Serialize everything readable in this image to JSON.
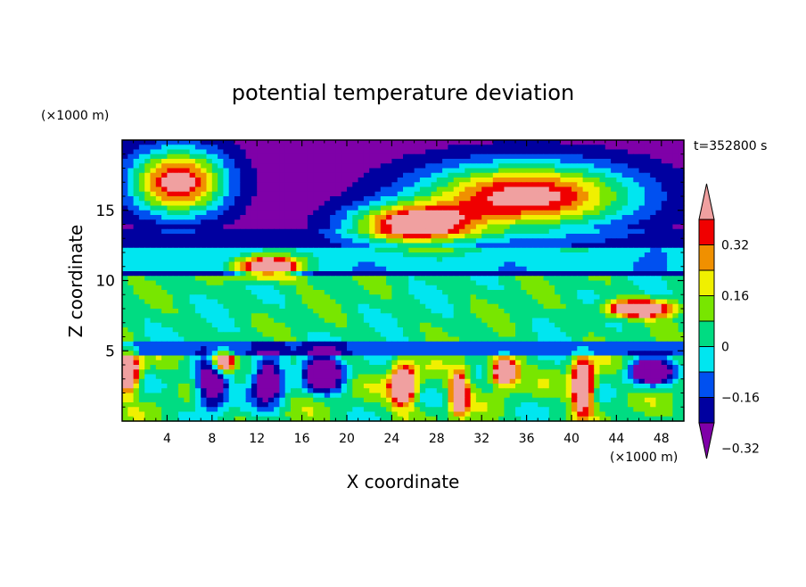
{
  "chart_data": {
    "type": "heatmap",
    "title": "potential temperature deviation",
    "time_label": "t=352800 s",
    "xlabel": "X coordinate",
    "ylabel": "Z coordinate",
    "x_unit": "(×1000 m)",
    "z_unit": "(×1000 m)",
    "xlim": [
      0,
      50
    ],
    "zlim": [
      0,
      20
    ],
    "x_ticks": [
      4,
      8,
      12,
      16,
      20,
      24,
      28,
      32,
      36,
      40,
      44,
      48
    ],
    "z_ticks": [
      5,
      10,
      15
    ],
    "colorbar": {
      "levels": [
        -0.4,
        -0.32,
        -0.24,
        -0.16,
        -0.08,
        0,
        0.08,
        0.16,
        0.24,
        0.32,
        0.4
      ],
      "labels": [
        "0.32",
        "0.16",
        "0",
        "−0.16",
        "−0.32"
      ],
      "label_values": [
        0.32,
        0.16,
        0,
        -0.16,
        -0.32
      ],
      "colors": [
        "#7f00a8",
        "#0000a0",
        "#0050f0",
        "#00e6f0",
        "#00dc82",
        "#78e600",
        "#f0f000",
        "#f09000",
        "#f00000",
        "#f0a0a0"
      ]
    },
    "features": [
      {
        "kind": "high",
        "x": 5,
        "z": 17,
        "rx": 4.5,
        "rz": 2.5
      },
      {
        "kind": "high",
        "x": 36,
        "z": 16,
        "rx": 10,
        "rz": 2.5
      },
      {
        "kind": "high",
        "x": 26,
        "z": 14,
        "rx": 6,
        "rz": 1.5
      },
      {
        "kind": "high",
        "x": 13,
        "z": 11,
        "rx": 3,
        "rz": 0.8
      },
      {
        "kind": "high",
        "x": 46,
        "z": 8,
        "rx": 3,
        "rz": 0.6
      },
      {
        "kind": "high",
        "x": 25,
        "z": 2.5,
        "rx": 1.2,
        "rz": 1.5
      },
      {
        "kind": "high",
        "x": 30,
        "z": 2.0,
        "rx": 0.8,
        "rz": 1.5
      },
      {
        "kind": "high",
        "x": 34,
        "z": 3.5,
        "rx": 1.2,
        "rz": 1.0
      },
      {
        "kind": "high",
        "x": 9,
        "z": 4.2,
        "rx": 1.0,
        "rz": 0.8
      },
      {
        "kind": "high",
        "x": 0.5,
        "z": 3.5,
        "rx": 1.0,
        "rz": 1.5
      },
      {
        "kind": "high",
        "x": 41,
        "z": 2.5,
        "rx": 1.0,
        "rz": 2.0
      },
      {
        "kind": "low",
        "x": 8,
        "z": 2.5,
        "rx": 1.5,
        "rz": 1.8
      },
      {
        "kind": "low",
        "x": 13,
        "z": 3.0,
        "rx": 1.5,
        "rz": 1.8
      },
      {
        "kind": "low",
        "x": 18,
        "z": 3.5,
        "rx": 1.8,
        "rz": 1.5
      },
      {
        "kind": "low",
        "x": 47,
        "z": 3.5,
        "rx": 2.0,
        "rz": 1.0
      }
    ]
  }
}
